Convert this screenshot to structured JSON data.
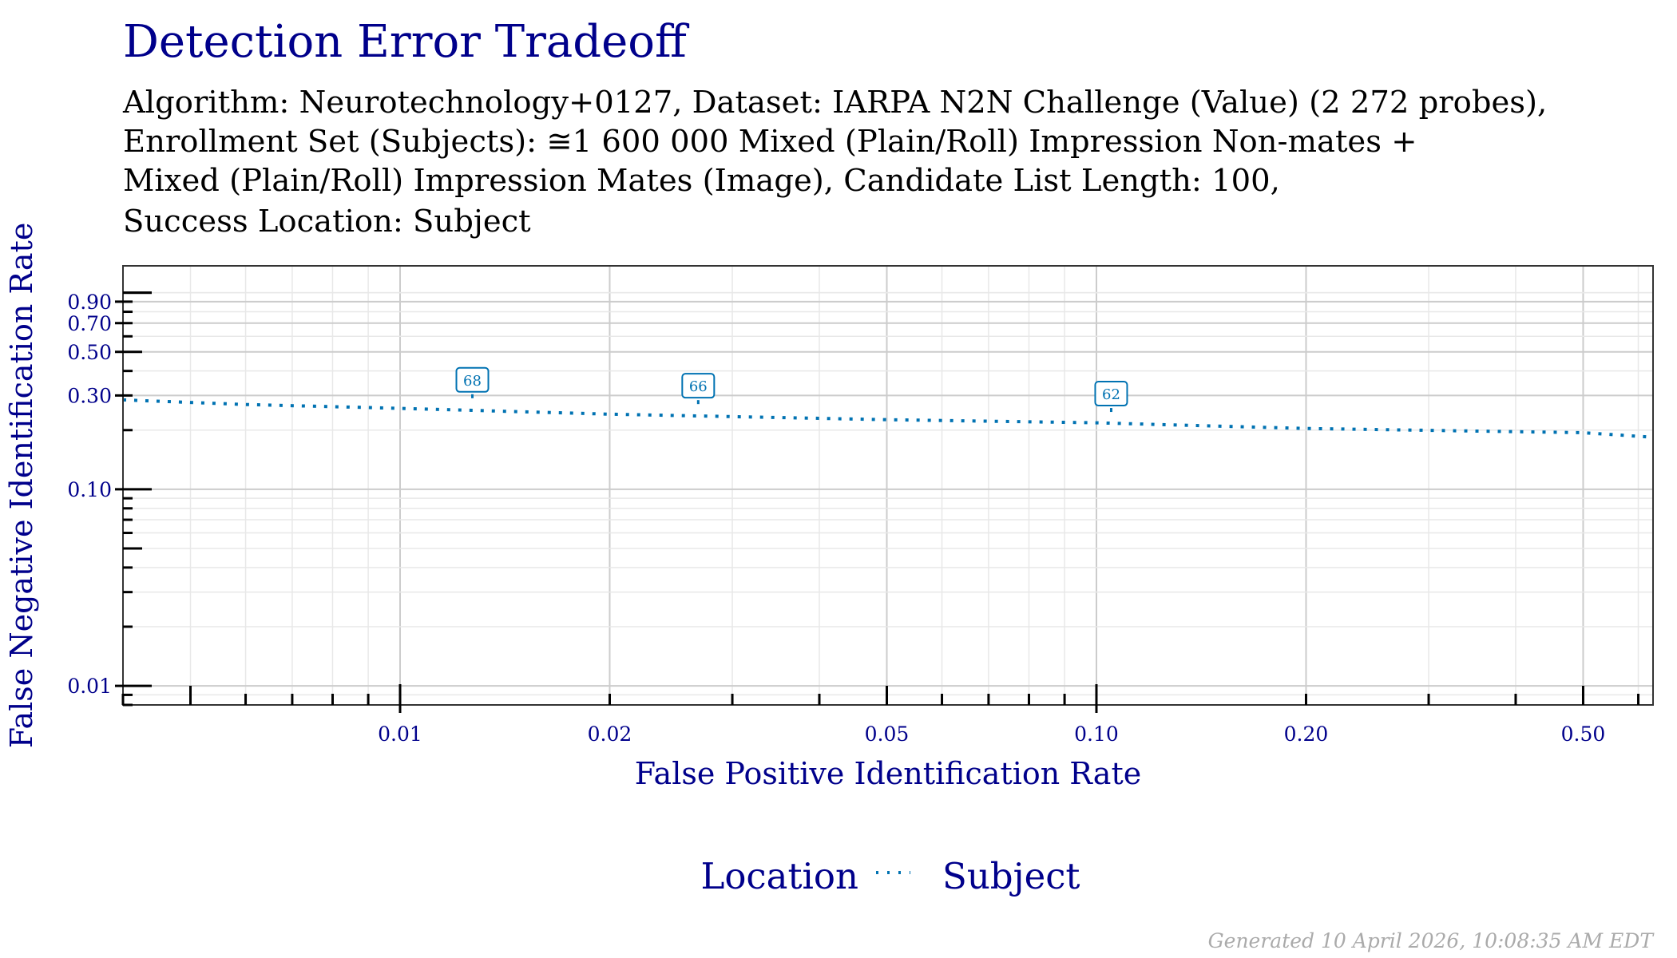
{
  "title": "Detection Error Tradeoff",
  "subtitle_lines": [
    "Algorithm: Neurotechnology+0127, Dataset: IARPA N2N Challenge (Value) (2 272 probes),",
    "Enrollment Set (Subjects): ≅1 600 000 Mixed (Plain/Roll) Impression Non-mates +",
    "Mixed (Plain/Roll) Impression Mates (Image), Candidate List Length: 100,",
    "Success Location: Subject"
  ],
  "footer": "Generated 10 April 2026, 10:08:35 AM EDT",
  "colors": {
    "title": "#00008B",
    "series": "#0072B2",
    "grid_major": "#cccccc",
    "grid_minor": "#e8e8e8"
  },
  "chart_data": {
    "type": "line",
    "xlabel": "False Positive Identification Rate",
    "ylabel": "False Negative Identification Rate",
    "x_scale": "log",
    "y_scale": "log",
    "xlim": [
      0.004,
      0.63
    ],
    "ylim": [
      0.008,
      1.37
    ],
    "grid": true,
    "x_ticks": [
      0.01,
      0.02,
      0.05,
      0.1,
      0.2,
      0.5
    ],
    "x_tick_labels": [
      "0.01",
      "0.02",
      "0.05",
      "0.10",
      "0.20",
      "0.50"
    ],
    "y_ticks": [
      0.01,
      0.1,
      0.3,
      0.5,
      0.7,
      0.9
    ],
    "y_tick_labels": [
      "0.01",
      "0.10",
      "0.30",
      "0.50",
      "0.70",
      "0.90"
    ],
    "legend": {
      "title": "Location",
      "placement": "bottom",
      "entries": [
        "Subject"
      ]
    },
    "series": [
      {
        "name": "Subject",
        "line_style": "dotted",
        "x": [
          0.004,
          0.006,
          0.01,
          0.02,
          0.05,
          0.1,
          0.2,
          0.5,
          0.63
        ],
        "y": [
          0.285,
          0.27,
          0.258,
          0.241,
          0.226,
          0.218,
          0.204,
          0.194,
          0.184
        ],
        "annotations": [
          {
            "x": 0.0127,
            "y": 0.255,
            "label": "68"
          },
          {
            "x": 0.0268,
            "y": 0.238,
            "label": "66"
          },
          {
            "x": 0.105,
            "y": 0.217,
            "label": "62"
          }
        ]
      }
    ]
  }
}
